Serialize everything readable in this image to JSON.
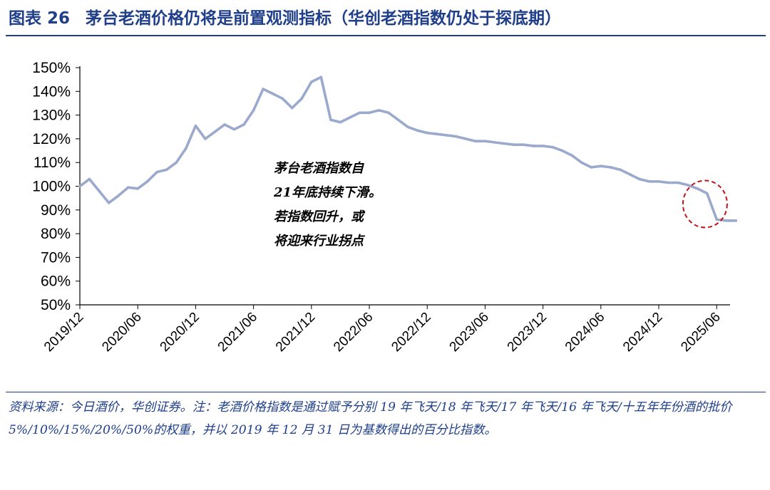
{
  "header": {
    "figure_label": "图表",
    "figure_number": "26",
    "title": "茅台老酒价格仍将是前置观测指标（华创老酒指数仍处于探底期）"
  },
  "colors": {
    "title": "#1f3f8a",
    "series": "#9aa9cc",
    "highlight": "#c0141c"
  },
  "chart_data": {
    "type": "line",
    "title": "",
    "xlabel": "",
    "ylabel": "",
    "ylim": [
      0.5,
      1.5
    ],
    "yticks": [
      "50%",
      "60%",
      "70%",
      "80%",
      "90%",
      "100%",
      "110%",
      "120%",
      "130%",
      "140%",
      "150%"
    ],
    "xticks": [
      "2019/12",
      "2020/06",
      "2020/12",
      "2021/06",
      "2021/12",
      "2022/06",
      "2022/12",
      "2023/06",
      "2023/12",
      "2024/06",
      "2024/12",
      "2025/06"
    ],
    "grid": false,
    "legend": "none",
    "series": [
      {
        "x": [
          "2019/12",
          "2020/01",
          "2020/02",
          "2020/03",
          "2020/04",
          "2020/05",
          "2020/06",
          "2020/07",
          "2020/08",
          "2020/09",
          "2020/10",
          "2020/11",
          "2020/12",
          "2021/01",
          "2021/02",
          "2021/03",
          "2021/04",
          "2021/05",
          "2021/06",
          "2021/07",
          "2021/08",
          "2021/09",
          "2021/10",
          "2021/11",
          "2021/12",
          "2022/01",
          "2022/02",
          "2022/03",
          "2022/04",
          "2022/05",
          "2022/06",
          "2022/07",
          "2022/08",
          "2022/09",
          "2022/10",
          "2022/11",
          "2022/12",
          "2023/01",
          "2023/02",
          "2023/03",
          "2023/04",
          "2023/05",
          "2023/06",
          "2023/07",
          "2023/08",
          "2023/09",
          "2023/10",
          "2023/11",
          "2023/12",
          "2024/01",
          "2024/02",
          "2024/03",
          "2024/04",
          "2024/05",
          "2024/06",
          "2024/07",
          "2024/08",
          "2024/09",
          "2024/10",
          "2024/11",
          "2024/12",
          "2025/01",
          "2025/02",
          "2025/03",
          "2025/04",
          "2025/05",
          "2025/06",
          "2025/07",
          "2025/08"
        ],
        "values": [
          1.0,
          1.03,
          0.98,
          0.93,
          0.96,
          0.995,
          0.99,
          1.02,
          1.06,
          1.07,
          1.1,
          1.16,
          1.255,
          1.2,
          1.23,
          1.26,
          1.24,
          1.26,
          1.32,
          1.41,
          1.39,
          1.37,
          1.33,
          1.37,
          1.44,
          1.46,
          1.28,
          1.27,
          1.29,
          1.31,
          1.31,
          1.32,
          1.31,
          1.28,
          1.25,
          1.235,
          1.225,
          1.22,
          1.215,
          1.21,
          1.2,
          1.19,
          1.19,
          1.185,
          1.18,
          1.175,
          1.175,
          1.17,
          1.17,
          1.165,
          1.15,
          1.13,
          1.1,
          1.08,
          1.085,
          1.08,
          1.07,
          1.05,
          1.03,
          1.02,
          1.02,
          1.015,
          1.015,
          1.005,
          0.99,
          0.97,
          0.86,
          0.855,
          0.855
        ]
      }
    ],
    "annotation": [
      "茅台老酒指数自",
      "21年底持续下滑。",
      "若指数回升，或",
      "将迎来行业拐点"
    ]
  },
  "footer": {
    "source_text": "资料来源：今日酒价，华创证券。注：老酒价格指数是通过赋予分别 19 年飞天/18 年飞天/17 年飞天/16 年飞天/十五年年份酒的批价 5%/10%/15%/20%/50%的权重，并以 2019 年 12 月 31 日为基数得出的百分比指数。"
  }
}
